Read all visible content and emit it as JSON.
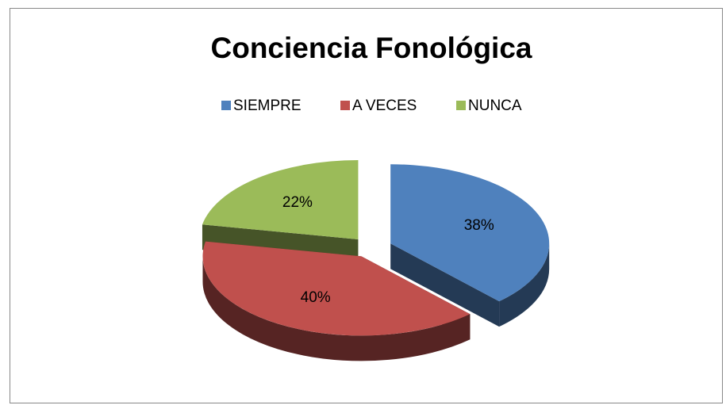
{
  "chart_data": {
    "type": "pie",
    "title": "Conciencia Fonológica",
    "categories": [
      "SIEMPRE",
      "A VECES",
      "NUNCA"
    ],
    "values": [
      38,
      40,
      22
    ],
    "value_labels": [
      "38%",
      "40%",
      "22%"
    ],
    "colors": [
      "#4f81bd",
      "#c0504d",
      "#9bbb59"
    ],
    "legend": "top"
  }
}
